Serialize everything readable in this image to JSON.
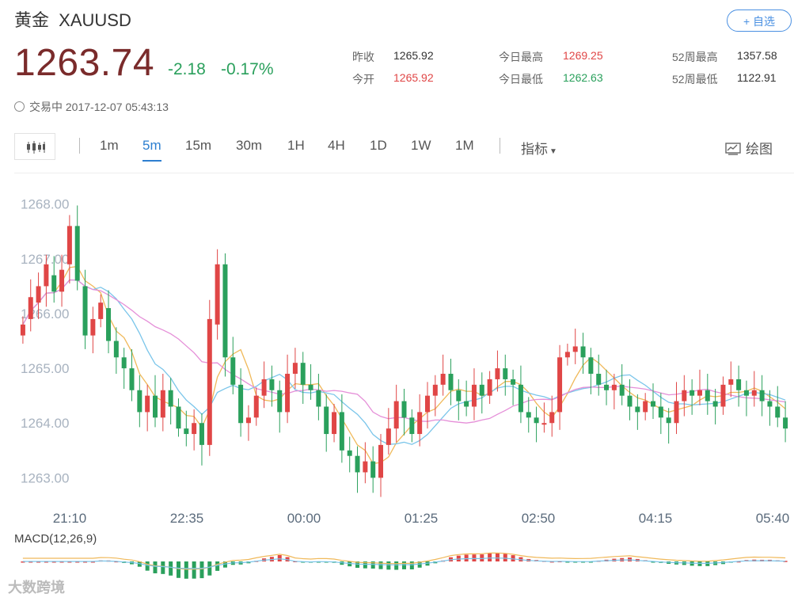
{
  "header": {
    "name": "黄金",
    "symbol": "XAUUSD",
    "add_watchlist_label": "+ 自选"
  },
  "quote": {
    "price": "1263.74",
    "change": "-2.18",
    "change_pct": "-0.17%"
  },
  "stats": {
    "prev_close_label": "昨收",
    "prev_close": "1265.92",
    "open_label": "今开",
    "open": "1265.92",
    "high_label": "今日最高",
    "high": "1269.25",
    "low_label": "今日最低",
    "low": "1262.63",
    "wk52_high_label": "52周最高",
    "wk52_high": "1357.58",
    "wk52_low_label": "52周最低",
    "wk52_low": "1122.91"
  },
  "status": {
    "icon": "clock-icon",
    "text": "交易中 2017-12-07 05:43:13"
  },
  "toolbar": {
    "chart_type_icon": "candlestick-icon",
    "timeframes": [
      "1m",
      "5m",
      "15m",
      "30m",
      "1H",
      "4H",
      "1D",
      "1W",
      "1M"
    ],
    "active_timeframe": "5m",
    "indicators_label": "指标",
    "draw_label": "绘图",
    "draw_icon": "draw-chart-icon"
  },
  "colors": {
    "up": "#e04646",
    "down": "#2aa05c",
    "ma_yellow": "#f0b95a",
    "ma_blue": "#7ac5ea",
    "ma_pink": "#e58fd8",
    "accent": "#2d7fd0"
  },
  "chart_data": {
    "type": "candlestick",
    "y_ticks": [
      "1268.00",
      "1267.00",
      "1266.00",
      "1265.00",
      "1264.00",
      "1263.00"
    ],
    "x_ticks": [
      "21:10",
      "22:35",
      "00:00",
      "01:25",
      "02:50",
      "04:15",
      "05:40"
    ],
    "ylim": [
      1262.6,
      1268.3
    ],
    "series_close": [
      1265.8,
      1266.3,
      1266.5,
      1266.9,
      1266.4,
      1266.8,
      1267.6,
      1266.6,
      1265.6,
      1265.9,
      1266.2,
      1265.5,
      1265.2,
      1265.0,
      1264.6,
      1264.2,
      1264.5,
      1264.1,
      1264.6,
      1264.3,
      1263.9,
      1263.8,
      1264.0,
      1263.6,
      1265.9,
      1266.9,
      1265.2,
      1264.7,
      1264.0,
      1264.1,
      1264.5,
      1264.8,
      1264.6,
      1264.2,
      1264.9,
      1265.1,
      1264.7,
      1264.6,
      1264.3,
      1263.8,
      1264.2,
      1263.5,
      1263.4,
      1263.1,
      1263.3,
      1263.0,
      1263.6,
      1263.9,
      1264.4,
      1264.1,
      1263.8,
      1264.2,
      1264.5,
      1264.7,
      1264.9,
      1264.6,
      1264.4,
      1264.3,
      1264.7,
      1264.5,
      1264.8,
      1265.0,
      1264.8,
      1264.7,
      1264.2,
      1264.1,
      1264.0,
      1264.0,
      1264.2,
      1265.2,
      1265.3,
      1265.4,
      1265.2,
      1264.9,
      1264.7,
      1264.6,
      1264.7,
      1264.5,
      1264.3,
      1264.2,
      1264.4,
      1264.3,
      1264.1,
      1264.0,
      1264.4,
      1264.6,
      1264.5,
      1264.6,
      1264.4,
      1264.3,
      1264.7,
      1264.8,
      1264.6,
      1264.5,
      1264.6,
      1264.4,
      1264.3,
      1264.1,
      1263.9
    ],
    "series_open": [
      1265.6,
      1265.9,
      1266.2,
      1266.5,
      1266.7,
      1266.4,
      1266.9,
      1267.6,
      1266.5,
      1265.6,
      1265.9,
      1266.1,
      1265.5,
      1265.2,
      1265.0,
      1264.6,
      1264.2,
      1264.5,
      1264.1,
      1264.6,
      1264.3,
      1263.9,
      1263.8,
      1264.0,
      1263.6,
      1265.8,
      1266.9,
      1265.2,
      1264.7,
      1264.0,
      1264.1,
      1264.5,
      1264.8,
      1264.6,
      1264.2,
      1264.9,
      1265.1,
      1264.7,
      1264.6,
      1264.3,
      1263.8,
      1264.2,
      1263.5,
      1263.4,
      1263.1,
      1263.3,
      1263.0,
      1263.6,
      1263.9,
      1264.4,
      1264.1,
      1263.8,
      1264.2,
      1264.5,
      1264.7,
      1264.9,
      1264.6,
      1264.4,
      1264.3,
      1264.7,
      1264.5,
      1264.8,
      1265.0,
      1264.8,
      1264.7,
      1264.2,
      1264.1,
      1264.0,
      1264.0,
      1264.2,
      1265.2,
      1265.3,
      1265.4,
      1265.2,
      1264.9,
      1264.7,
      1264.6,
      1264.7,
      1264.5,
      1264.3,
      1264.2,
      1264.4,
      1264.3,
      1264.1,
      1264.0,
      1264.4,
      1264.6,
      1264.5,
      1264.6,
      1264.4,
      1264.3,
      1264.7,
      1264.8,
      1264.6,
      1264.5,
      1264.6,
      1264.4,
      1264.3,
      1264.1
    ],
    "macd_label": "MACD(12,26,9)"
  },
  "watermark": "大数跨境"
}
